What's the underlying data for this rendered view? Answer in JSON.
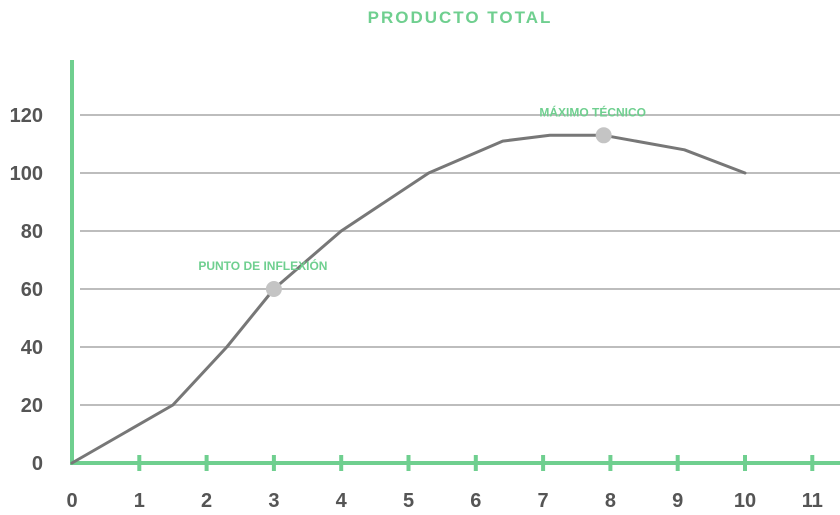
{
  "chart_data": {
    "type": "line",
    "title": "PRODUCTO TOTAL",
    "xlabel": "",
    "ylabel": "",
    "xlim": [
      0,
      11
    ],
    "ylim": [
      0,
      120
    ],
    "x_ticks": [
      0,
      1,
      2,
      3,
      4,
      5,
      6,
      7,
      8,
      9,
      10,
      11
    ],
    "y_ticks": [
      0,
      20,
      40,
      60,
      80,
      100,
      120
    ],
    "grid": "horizontal",
    "series": [
      {
        "x": [
          0,
          1.5,
          2.3,
          3,
          4,
          5.3,
          6.4,
          7.1,
          7.9,
          9.1,
          10
        ],
        "y": [
          0,
          20,
          40,
          60,
          80,
          100,
          111,
          113,
          113,
          108,
          100
        ]
      }
    ],
    "annotations": [
      {
        "text": "PUNTO DE INFLEXIÓN",
        "x": 3,
        "y": 60
      },
      {
        "text": "MÁXIMO TÉCNICO",
        "x": 7.9,
        "y": 113
      }
    ],
    "colors": {
      "accent": "#6fcf8f",
      "line": "#777777",
      "grid": "#bdbdbd",
      "marker": "#c4c4c4",
      "tick_text": "#555555"
    }
  }
}
